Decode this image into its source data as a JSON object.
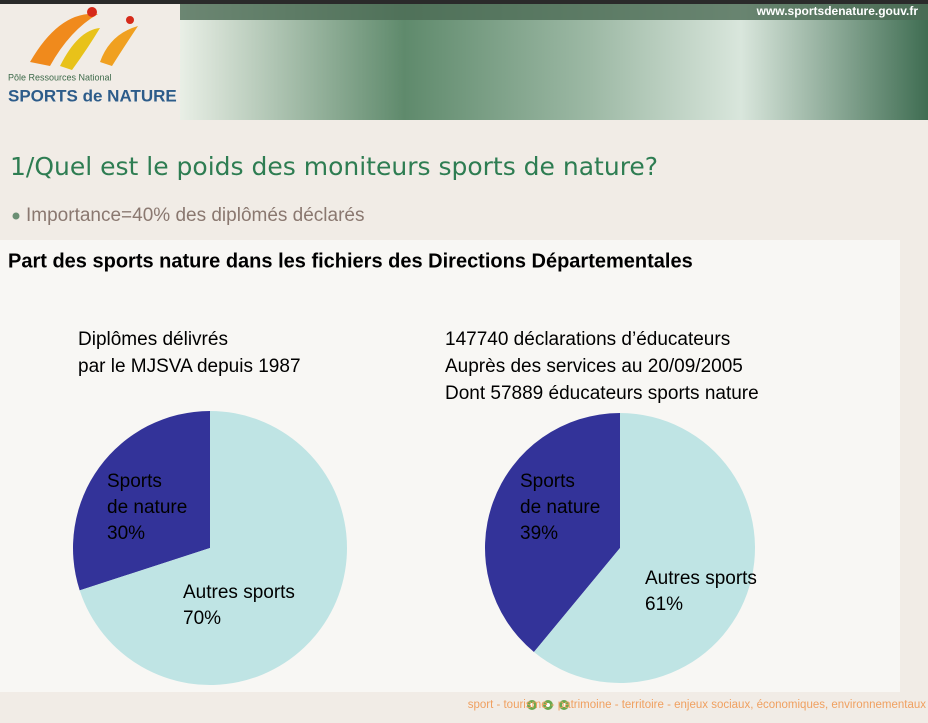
{
  "header": {
    "url": "www.sportsdenature.gouv.fr",
    "logo_line1": "Pôle Ressources National",
    "logo_line2": "SPORTS de NATURE"
  },
  "slide_title": "1/Quel est le poids des moniteurs sports de nature?",
  "bullet": "Importance=40% des diplômés déclarés",
  "panel_title": "Part des sports nature dans les fichiers des Directions Départementales",
  "footer": "sport - tourisme - patrimoine - territoire - enjeux sociaux, économiques, environnementaux",
  "chart_data": [
    {
      "type": "pie",
      "title_lines": [
        "Diplômes délivrés",
        "par le MJSVA depuis 1987"
      ],
      "categories": [
        [
          "Sports",
          "de nature"
        ],
        [
          "Autres sports"
        ]
      ],
      "values": [
        30,
        70
      ],
      "value_labels": [
        "30%",
        "70%"
      ],
      "colors": [
        "#333399",
        "#bfe4e4"
      ]
    },
    {
      "type": "pie",
      "title_lines": [
        "147740 déclarations d’éducateurs",
        "Auprès des services au 20/09/2005",
        "Dont 57889 éducateurs sports nature"
      ],
      "categories": [
        [
          "Sports",
          "de nature"
        ],
        [
          "Autres sports"
        ]
      ],
      "values": [
        39,
        61
      ],
      "value_labels": [
        "39%",
        "61%"
      ],
      "colors": [
        "#333399",
        "#bfe4e4"
      ]
    }
  ]
}
